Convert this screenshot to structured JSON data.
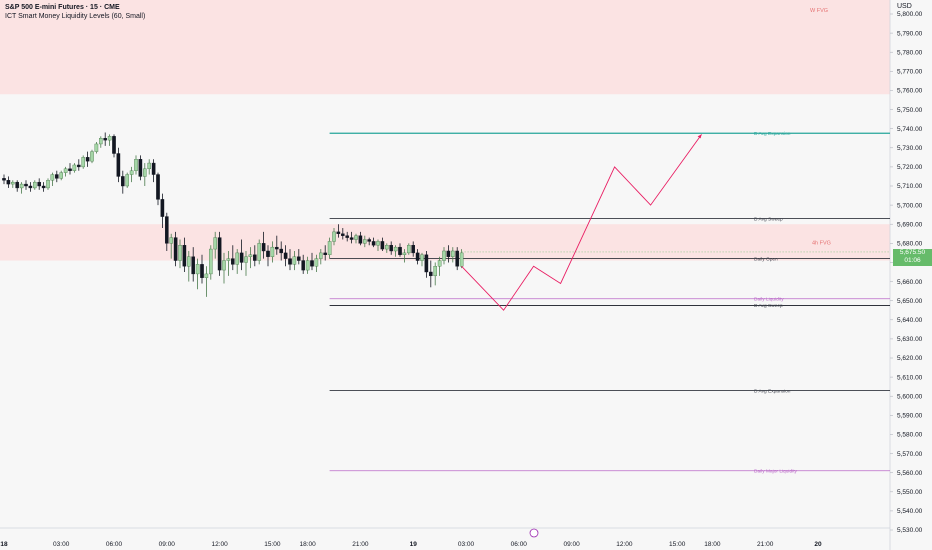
{
  "header": {
    "symbol_title": "S&P 500 E-mini Futures · 15 · CME",
    "indicator_title": "ICT Smart Money Liquidity Levels (60, Small)"
  },
  "price_axis": {
    "currency": "USD",
    "current_price": "5,675.50",
    "countdown": "01:06"
  },
  "colors": {
    "up": "#a5d6a7",
    "down": "#131722",
    "fvg_zone": "#fbe3e3",
    "fvg_text": "#e57373",
    "sweep_line": "#131722",
    "liquidity_line": "#ba68c8",
    "expansion_line": "#131722",
    "green_line": "#26a69a",
    "projection": "#e91e63",
    "price_tag": "#66bb6a"
  },
  "chart_data": {
    "type": "candlestick",
    "y_range": [
      5525,
      5820
    ],
    "y_ticks": [
      "5,530.00",
      "5,540.00",
      "5,550.00",
      "5,560.00",
      "5,570.00",
      "5,580.00",
      "5,590.00",
      "5,600.00",
      "5,610.00",
      "5,620.00",
      "5,630.00",
      "5,640.00",
      "5,650.00",
      "5,660.00",
      "5,670.00",
      "5,680.00",
      "5,690.00",
      "5,700.00",
      "5,710.00",
      "5,720.00",
      "5,730.00",
      "5,740.00",
      "5,750.00",
      "5,760.00",
      "5,770.00",
      "5,780.00",
      "5,790.00",
      "5,800.00"
    ],
    "time_labels": [
      {
        "label": "18",
        "bar": 0,
        "bold": true
      },
      {
        "label": "03:00",
        "bar": 13
      },
      {
        "label": "06:00",
        "bar": 25
      },
      {
        "label": "09:00",
        "bar": 37
      },
      {
        "label": "12:00",
        "bar": 49
      },
      {
        "label": "15:00",
        "bar": 61
      },
      {
        "label": "18:00",
        "bar": 69
      },
      {
        "label": "21:00",
        "bar": 81
      },
      {
        "label": "19",
        "bar": 93,
        "bold": true
      },
      {
        "label": "03:00",
        "bar": 105
      },
      {
        "label": "06:00",
        "bar": 117
      },
      {
        "label": "09:00",
        "bar": 129
      },
      {
        "label": "12:00",
        "bar": 141
      },
      {
        "label": "15:00",
        "bar": 153
      },
      {
        "label": "18:00",
        "bar": 161
      },
      {
        "label": "21:00",
        "bar": 173
      },
      {
        "label": "20",
        "bar": 185,
        "bold": true
      }
    ],
    "candles": [
      [
        5714,
        5716,
        5711,
        5713
      ],
      [
        5713,
        5715,
        5709,
        5711
      ],
      [
        5711,
        5713,
        5709,
        5712
      ],
      [
        5712,
        5713,
        5707,
        5709
      ],
      [
        5709,
        5712,
        5706,
        5711
      ],
      [
        5711,
        5713,
        5708,
        5710
      ],
      [
        5710,
        5712,
        5707,
        5709
      ],
      [
        5709,
        5713,
        5708,
        5712
      ],
      [
        5712,
        5714,
        5708,
        5710
      ],
      [
        5710,
        5712,
        5707,
        5709
      ],
      [
        5709,
        5714,
        5708,
        5713
      ],
      [
        5713,
        5717,
        5710,
        5716
      ],
      [
        5716,
        5718,
        5712,
        5714
      ],
      [
        5714,
        5718,
        5713,
        5717
      ],
      [
        5717,
        5720,
        5715,
        5719
      ],
      [
        5719,
        5722,
        5716,
        5718
      ],
      [
        5718,
        5722,
        5717,
        5721
      ],
      [
        5721,
        5724,
        5718,
        5720
      ],
      [
        5720,
        5726,
        5719,
        5725
      ],
      [
        5725,
        5728,
        5720,
        5723
      ],
      [
        5723,
        5729,
        5722,
        5728
      ],
      [
        5728,
        5733,
        5727,
        5732
      ],
      [
        5732,
        5736,
        5730,
        5735
      ],
      [
        5735,
        5738,
        5731,
        5734
      ],
      [
        5734,
        5737,
        5731,
        5736
      ],
      [
        5736,
        5737,
        5725,
        5727
      ],
      [
        5727,
        5730,
        5712,
        5715
      ],
      [
        5715,
        5718,
        5706,
        5710
      ],
      [
        5710,
        5717,
        5709,
        5716
      ],
      [
        5716,
        5720,
        5712,
        5718
      ],
      [
        5718,
        5726,
        5716,
        5724
      ],
      [
        5724,
        5726,
        5713,
        5715
      ],
      [
        5715,
        5722,
        5710,
        5719
      ],
      [
        5719,
        5724,
        5716,
        5722
      ],
      [
        5722,
        5724,
        5712,
        5716
      ],
      [
        5716,
        5717,
        5700,
        5703
      ],
      [
        5703,
        5706,
        5688,
        5694
      ],
      [
        5694,
        5696,
        5676,
        5680
      ],
      [
        5680,
        5685,
        5672,
        5683
      ],
      [
        5683,
        5686,
        5668,
        5671
      ],
      [
        5671,
        5682,
        5667,
        5679
      ],
      [
        5679,
        5683,
        5665,
        5668
      ],
      [
        5668,
        5676,
        5660,
        5673
      ],
      [
        5673,
        5678,
        5660,
        5664
      ],
      [
        5664,
        5672,
        5656,
        5669
      ],
      [
        5669,
        5674,
        5659,
        5662
      ],
      [
        5662,
        5668,
        5652,
        5664
      ],
      [
        5664,
        5679,
        5661,
        5677
      ],
      [
        5677,
        5686,
        5672,
        5683
      ],
      [
        5683,
        5686,
        5663,
        5666
      ],
      [
        5666,
        5675,
        5659,
        5671
      ],
      [
        5671,
        5676,
        5663,
        5672
      ],
      [
        5672,
        5679,
        5666,
        5669
      ],
      [
        5669,
        5677,
        5664,
        5675
      ],
      [
        5675,
        5682,
        5666,
        5670
      ],
      [
        5670,
        5676,
        5663,
        5673
      ],
      [
        5673,
        5678,
        5667,
        5674
      ],
      [
        5674,
        5679,
        5668,
        5671
      ],
      [
        5671,
        5682,
        5669,
        5680
      ],
      [
        5680,
        5686,
        5672,
        5676
      ],
      [
        5676,
        5679,
        5668,
        5673
      ],
      [
        5673,
        5681,
        5670,
        5678
      ],
      [
        5678,
        5684,
        5674,
        5677
      ],
      [
        5677,
        5681,
        5671,
        5675
      ],
      [
        5675,
        5679,
        5668,
        5672
      ],
      [
        5672,
        5677,
        5666,
        5669
      ],
      [
        5669,
        5676,
        5666,
        5673
      ],
      [
        5673,
        5677,
        5669,
        5671
      ],
      [
        5671,
        5674,
        5664,
        5666
      ],
      [
        5666,
        5673,
        5664,
        5671
      ],
      [
        5671,
        5675,
        5666,
        5668
      ],
      [
        5668,
        5674,
        5665,
        5672
      ],
      [
        5672,
        5677,
        5669,
        5675
      ],
      [
        5675,
        5679,
        5671,
        5674
      ],
      [
        5674,
        5683,
        5672,
        5681
      ],
      [
        5681,
        5688,
        5679,
        5686
      ],
      [
        5686,
        5690,
        5683,
        5685
      ],
      [
        5685,
        5688,
        5682,
        5684
      ],
      [
        5684,
        5686,
        5681,
        5683
      ],
      [
        5683,
        5686,
        5680,
        5682
      ],
      [
        5682,
        5685,
        5680,
        5684
      ],
      [
        5684,
        5686,
        5679,
        5680
      ],
      [
        5680,
        5684,
        5678,
        5682
      ],
      [
        5682,
        5683,
        5679,
        5681
      ],
      [
        5681,
        5683,
        5678,
        5679
      ],
      [
        5679,
        5682,
        5676,
        5681
      ],
      [
        5681,
        5683,
        5676,
        5677
      ],
      [
        5677,
        5680,
        5675,
        5679
      ],
      [
        5679,
        5681,
        5674,
        5676
      ],
      [
        5676,
        5679,
        5673,
        5678
      ],
      [
        5678,
        5680,
        5673,
        5674
      ],
      [
        5674,
        5677,
        5670,
        5675
      ],
      [
        5675,
        5680,
        5674,
        5679
      ],
      [
        5679,
        5681,
        5673,
        5675
      ],
      [
        5675,
        5677,
        5669,
        5671
      ],
      [
        5671,
        5675,
        5668,
        5674
      ],
      [
        5674,
        5676,
        5662,
        5665
      ],
      [
        5665,
        5671,
        5657,
        5663
      ],
      [
        5663,
        5670,
        5658,
        5668
      ],
      [
        5668,
        5673,
        5663,
        5671
      ],
      [
        5671,
        5678,
        5669,
        5676
      ],
      [
        5676,
        5679,
        5670,
        5673
      ],
      [
        5673,
        5678,
        5670,
        5676
      ],
      [
        5676,
        5678,
        5666,
        5668
      ],
      [
        5668,
        5677,
        5667,
        5675
      ]
    ],
    "zones": [
      {
        "label": "W FVG",
        "y_from": 5758,
        "y_to": 5825
      },
      {
        "label": "4h FVG",
        "y_from": 5671,
        "y_to": 5690
      }
    ],
    "levels": [
      {
        "label": "D Avg Expansion",
        "price": 5737.6,
        "kind": "green_line"
      },
      {
        "label": "D Avg Sweep",
        "price": 5693,
        "kind": "sweep_line"
      },
      {
        "label": "Daily Open",
        "price": 5672,
        "kind": "sweep_line"
      },
      {
        "label": "Daily Liquidity",
        "price": 5651,
        "kind": "liquidity_line"
      },
      {
        "label": "D Avg Sweep",
        "price": 5647.5,
        "kind": "sweep_line"
      },
      {
        "label": "D Avg Expansion",
        "price": 5603,
        "kind": "expansion_line"
      },
      {
        "label": "Daily Major Liquidity",
        "price": 5561,
        "kind": "liquidity_line"
      }
    ],
    "projection": [
      [
        0,
        5668
      ],
      [
        14,
        5645
      ],
      [
        24,
        5668
      ],
      [
        33,
        5659
      ],
      [
        51,
        5720
      ],
      [
        63,
        5700
      ],
      [
        80,
        5737
      ]
    ]
  }
}
